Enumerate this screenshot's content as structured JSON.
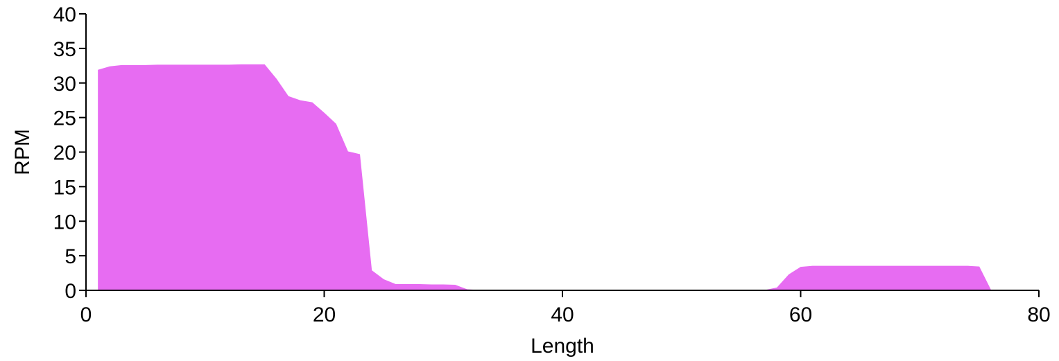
{
  "chart_data": {
    "type": "area",
    "title": "",
    "xlabel": "Length",
    "ylabel": "RPM",
    "xlim": [
      0,
      80
    ],
    "ylim": [
      0,
      40
    ],
    "x_ticks": [
      "0",
      "20",
      "40",
      "60",
      "80"
    ],
    "y_ticks": [
      "0",
      "5",
      "10",
      "15",
      "20",
      "25",
      "30",
      "35",
      "40"
    ],
    "grid": false,
    "legend": "none",
    "fill_color": "#e76cf2",
    "series": [
      {
        "x": [
          1,
          2,
          3,
          4,
          5,
          6,
          7,
          8,
          9,
          10,
          11,
          12,
          13,
          14,
          15,
          16,
          17,
          18,
          19,
          20,
          21,
          22,
          23,
          24,
          25,
          26,
          27,
          28,
          29,
          30,
          31,
          32,
          33,
          34,
          35,
          36,
          37,
          38,
          39,
          40,
          41,
          42,
          43,
          44,
          45,
          46,
          47,
          48,
          49,
          50,
          51,
          52,
          53,
          54,
          55,
          56,
          57,
          58,
          59,
          60,
          61,
          62,
          63,
          64,
          65,
          66,
          67,
          68,
          69,
          70,
          71,
          72,
          73,
          74,
          75,
          76
        ],
        "values": [
          31.9,
          32.4,
          32.6,
          32.6,
          32.6,
          32.65,
          32.65,
          32.65,
          32.65,
          32.65,
          32.65,
          32.65,
          32.7,
          32.7,
          32.7,
          30.6,
          28.1,
          27.5,
          27.2,
          25.7,
          24.1,
          20.1,
          19.7,
          2.9,
          1.6,
          0.9,
          0.9,
          0.9,
          0.85,
          0.85,
          0.8,
          0.15,
          0.05,
          0.05,
          0.05,
          0.05,
          0.05,
          0.05,
          0.05,
          0.05,
          0.05,
          0.05,
          0.05,
          0.05,
          0.05,
          0.05,
          0.05,
          0.05,
          0.05,
          0.05,
          0.05,
          0.05,
          0.05,
          0.05,
          0.05,
          0.05,
          0.05,
          0.4,
          2.3,
          3.4,
          3.55,
          3.55,
          3.55,
          3.55,
          3.55,
          3.55,
          3.55,
          3.55,
          3.55,
          3.55,
          3.55,
          3.55,
          3.55,
          3.55,
          3.45,
          0
        ]
      }
    ]
  }
}
